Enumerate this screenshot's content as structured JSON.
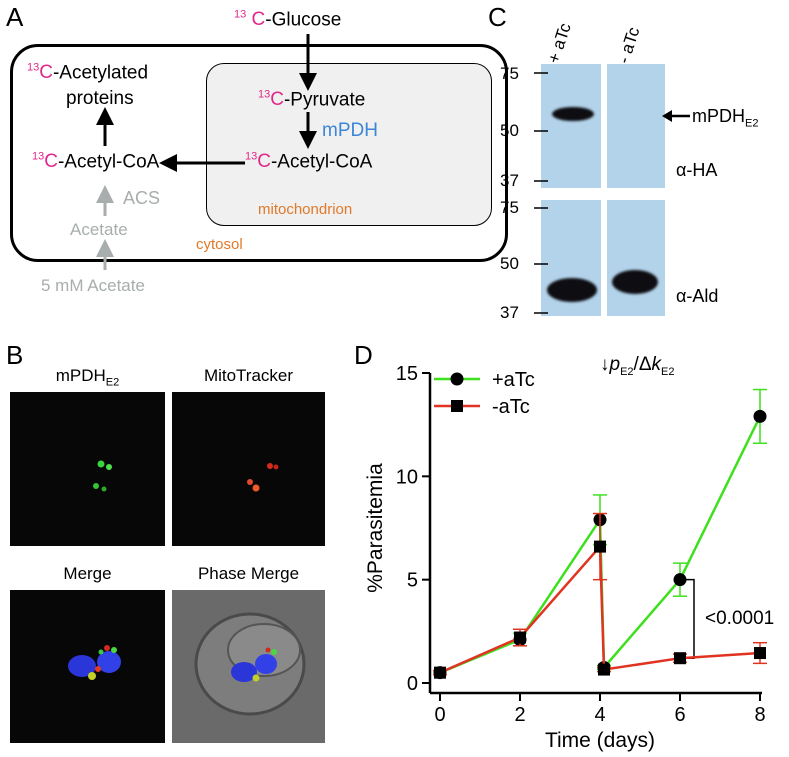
{
  "panelA": {
    "letter": "A",
    "glucose": "-Glucose",
    "acetylated_line1": "-Acetylated",
    "acetylated_line2": "proteins",
    "pyruvate": "-Pyruvate",
    "mpdh": "mPDH",
    "acetyl_coa_mito": "-Acetyl-CoA",
    "acetyl_coa_cyto": "-Acetyl-CoA",
    "acs": "ACS",
    "acetate": "Acetate",
    "ext_acetate": "5 mM Acetate",
    "mitochondrion": "mitochondrion",
    "cytosol": "cytosol",
    "iso_num": "13",
    "iso_sym": "C",
    "colors": {
      "isotope": "#e0288a",
      "enzyme": "#3b86d6",
      "compartment": "#e07a2a",
      "gray": "#a8adad"
    }
  },
  "panelB": {
    "letter": "B",
    "img1_label": "mPDH",
    "img1_sub": "E2",
    "img2_label": "MitoTracker",
    "img3_label": "Merge",
    "img4_label": "Phase Merge"
  },
  "panelC": {
    "letter": "C",
    "lane1": "+ aTc",
    "lane2": "- aTc",
    "marker_top": [
      "75",
      "50",
      "37"
    ],
    "marker_bottom": [
      "75",
      "50",
      "37"
    ],
    "target_label": "mPDH",
    "target_sub": "E2",
    "antibody_top": "α-HA",
    "antibody_bottom": "α-Ald"
  },
  "panelD": {
    "letter": "D",
    "strain_prefix": "↓",
    "strain_p": "p",
    "strain_sub1": "E2",
    "strain_mid": "/Δ",
    "strain_k": "k",
    "strain_sub2": "E2",
    "pvalue": "<0.0001"
  },
  "chart_data": {
    "type": "line",
    "title": "",
    "xlabel": "Time (days)",
    "ylabel": "%Parasitemia",
    "xlim": [
      0,
      8
    ],
    "ylim": [
      0,
      15
    ],
    "xticks": [
      0,
      2,
      4,
      6,
      8
    ],
    "yticks": [
      0,
      5,
      10,
      15
    ],
    "legend_position": "top-left",
    "series": [
      {
        "name": "+aTc",
        "color": "#3ee01e",
        "marker": "circle",
        "segments": [
          [
            {
              "x": 0,
              "y": 0.5,
              "err": 0.1
            },
            {
              "x": 2,
              "y": 2.1,
              "err": 0.3
            },
            {
              "x": 4,
              "y": 7.9,
              "err": 1.2
            }
          ],
          [
            {
              "x": 4.1,
              "y": 0.75,
              "err": 0.1
            },
            {
              "x": 6,
              "y": 5.0,
              "err": 0.8
            },
            {
              "x": 8,
              "y": 12.9,
              "err": 1.3
            }
          ]
        ],
        "drop": [
          [
            4,
            7.9
          ],
          [
            4.1,
            0.75
          ]
        ]
      },
      {
        "name": "-aTc",
        "color": "#e03322",
        "marker": "square",
        "segments": [
          [
            {
              "x": 0,
              "y": 0.5,
              "err": 0.1
            },
            {
              "x": 2,
              "y": 2.2,
              "err": 0.4
            },
            {
              "x": 4,
              "y": 6.6,
              "err": 1.6
            }
          ],
          [
            {
              "x": 4.1,
              "y": 0.65,
              "err": 0.1
            },
            {
              "x": 6,
              "y": 1.2,
              "err": 0.2
            },
            {
              "x": 8,
              "y": 1.45,
              "err": 0.5
            }
          ]
        ],
        "drop": [
          [
            4,
            6.6
          ],
          [
            4.1,
            0.65
          ]
        ]
      }
    ]
  }
}
